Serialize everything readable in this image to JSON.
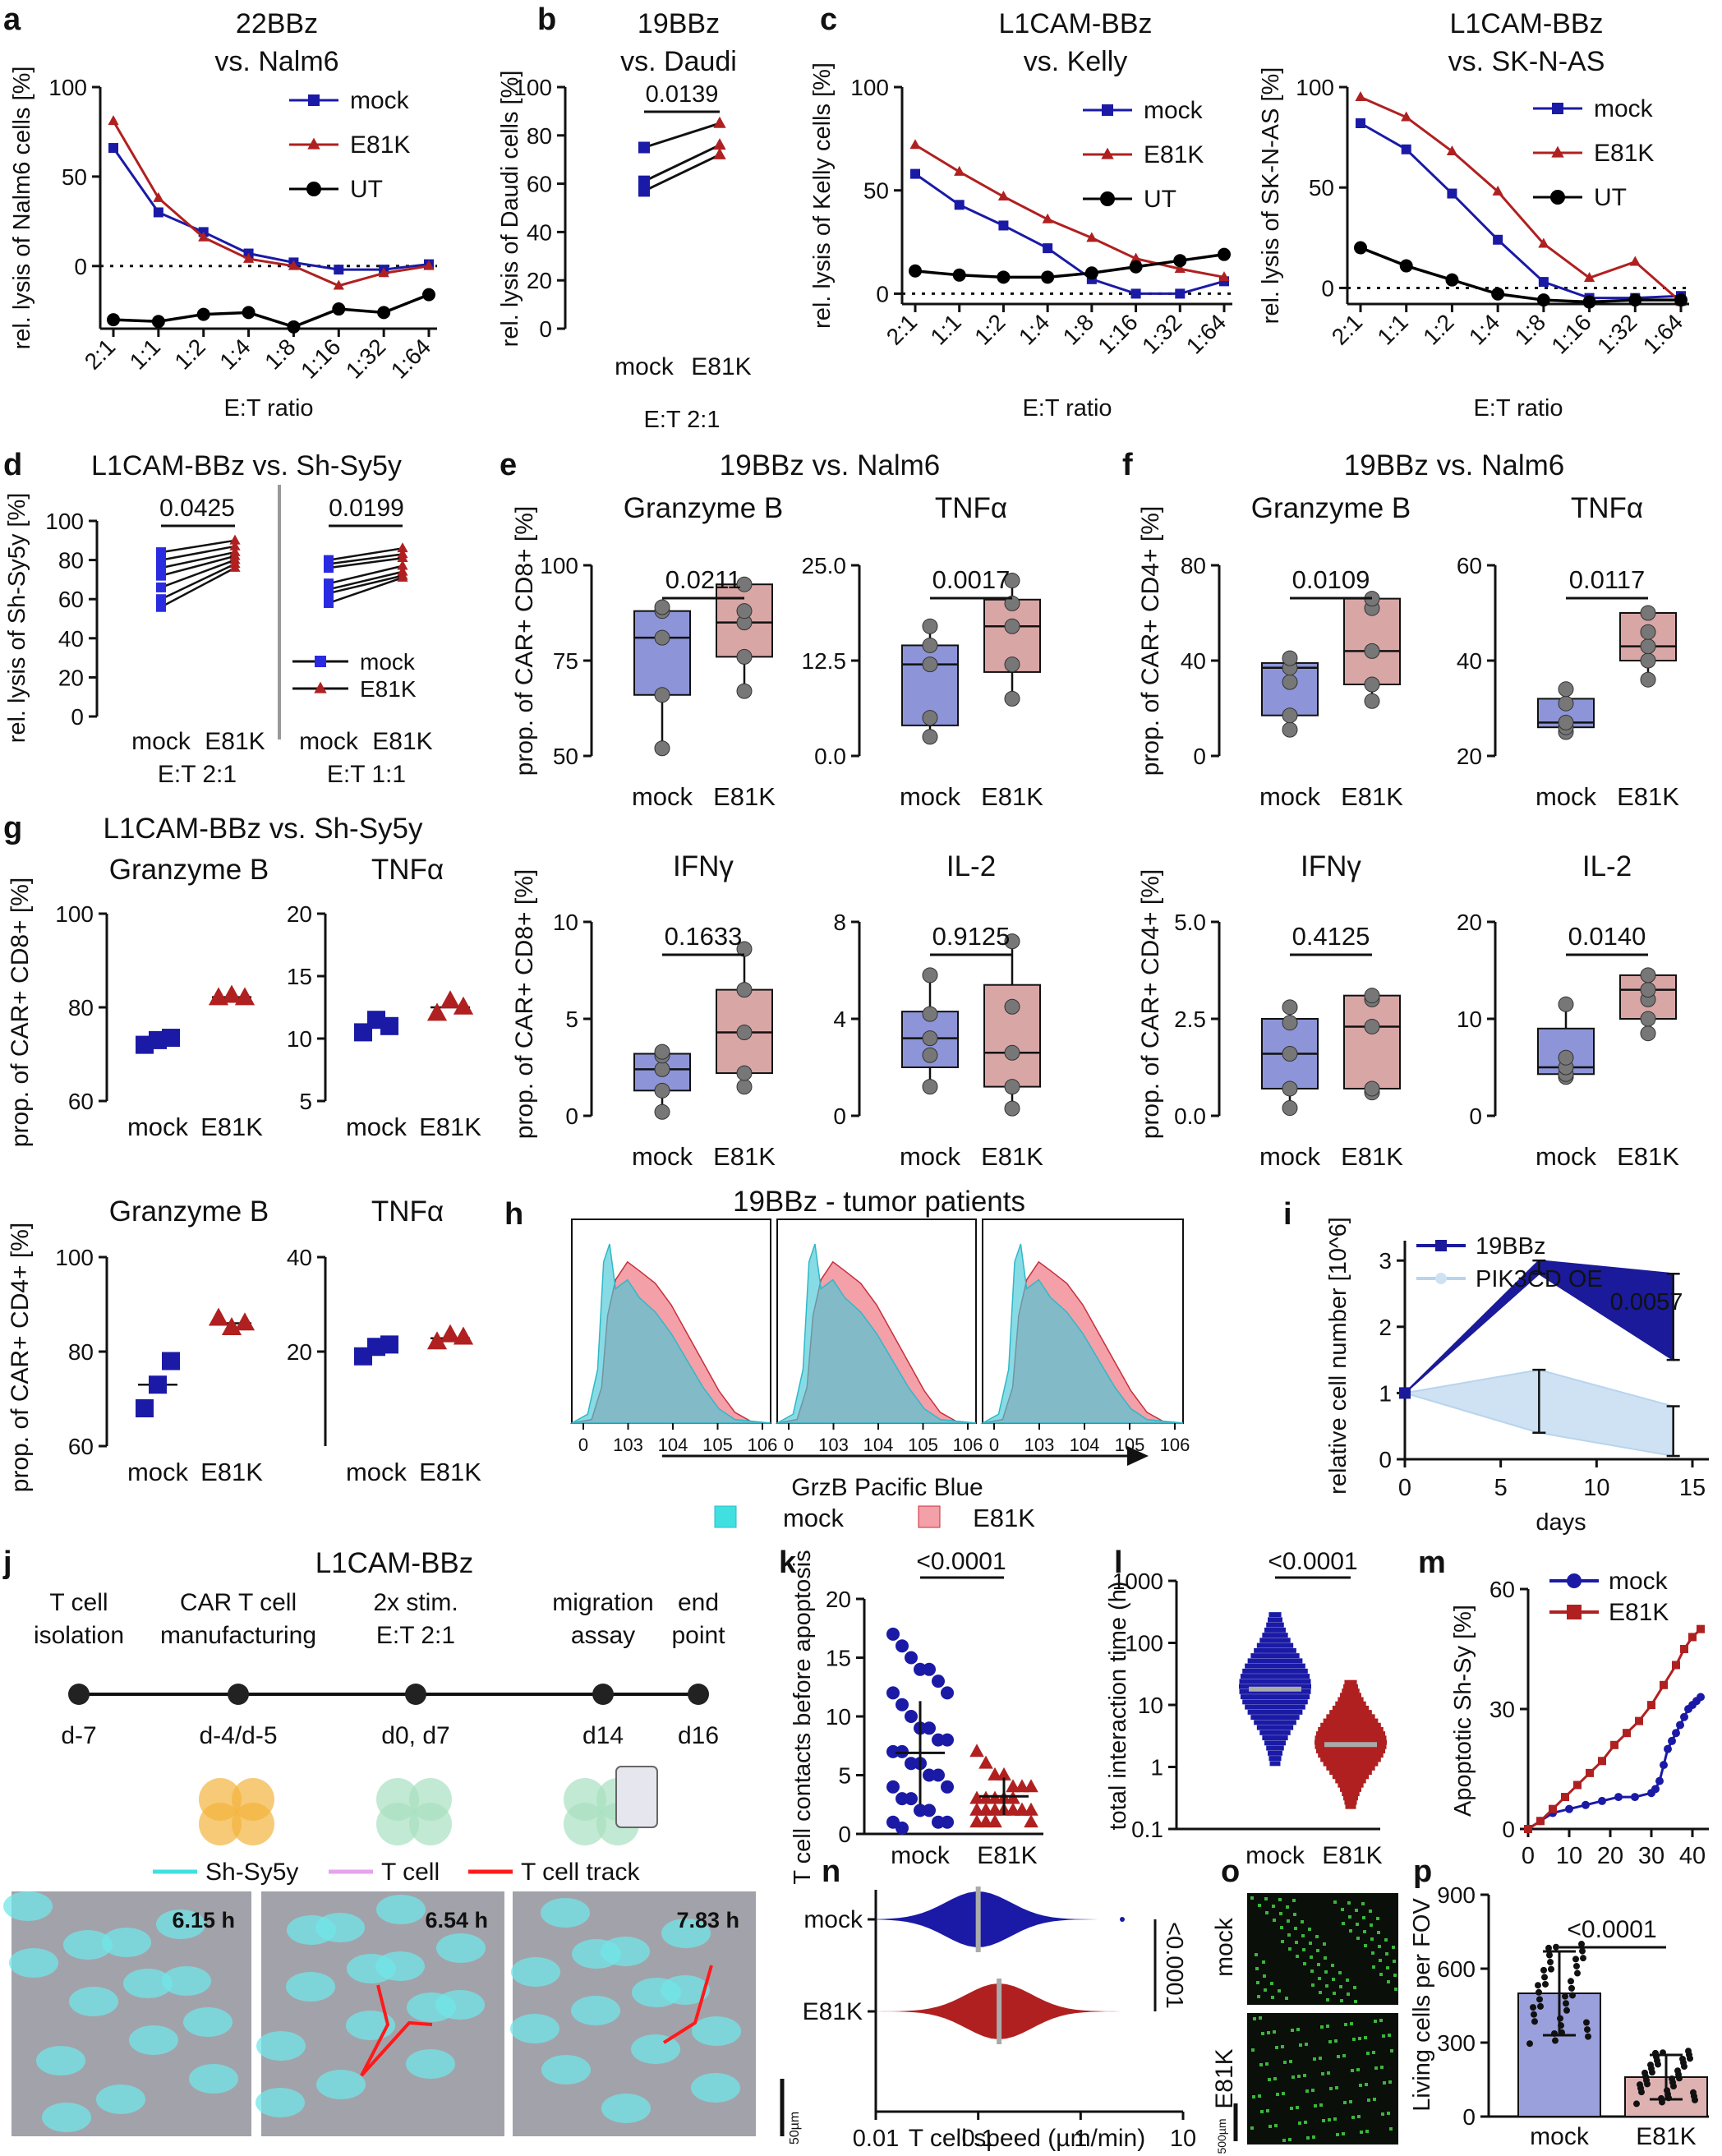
{
  "colors": {
    "mock": "#1a1aa6",
    "e81k": "#b02020",
    "ut": "#000000",
    "mock_fill": "#8d95d8",
    "e81k_fill": "#d9a6a6",
    "pik": "#cfe2f3",
    "cyan": "#40e0e0",
    "pinkfill": "#f3a0a8"
  },
  "panels": {
    "a": {
      "letter": "a",
      "title1": "22BBz",
      "title2": "vs. Nalm6",
      "ylabel": "rel. lysis of Nalm6 cells [%]",
      "xlabel": "E:T ratio"
    },
    "b": {
      "letter": "b",
      "title1": "19BBz",
      "title2": "vs. Daudi",
      "ylabel": "rel. lysis of Daudi cells [%]",
      "xlabel": "E:T 2:1",
      "pvalue": "0.0139"
    },
    "c1": {
      "letter": "c",
      "title1": "L1CAM-BBz",
      "title2": "vs. Kelly",
      "ylabel": "rel. lysis of Kelly cells [%]",
      "xlabel": "E:T ratio"
    },
    "c2": {
      "title1": "L1CAM-BBz",
      "title2": "vs. SK-N-AS",
      "ylabel": "rel. lysis of SK-N-AS [%]",
      "xlabel": "E:T ratio"
    },
    "d": {
      "letter": "d",
      "title": "L1CAM-BBz vs. Sh-Sy5y",
      "ylabel": "rel. lysis of Sh-Sy5y [%]",
      "p1": "0.0425",
      "p2": "0.0199",
      "x1": "E:T 2:1",
      "x2": "E:T 1:1"
    },
    "e": {
      "letter": "e",
      "title": "19BBz vs. Nalm6",
      "ylabel": "prop. of CAR+ CD8+ [%]"
    },
    "f": {
      "letter": "f",
      "title": "19BBz vs. Nalm6",
      "ylabel": "prop. of CAR+ CD4+ [%]"
    },
    "g": {
      "letter": "g",
      "title": "L1CAM-BBz vs. Sh-Sy5y",
      "ylabel_top": "prop. of CAR+ CD8+ [%]",
      "ylabel_bot": "prop. of CAR+ CD4+ [%]"
    },
    "h": {
      "letter": "h",
      "title": "19BBz - tumor patients",
      "xlabel": "GrzB Pacific Blue",
      "legend_mock": "mock",
      "legend_e81k": "E81K"
    },
    "i": {
      "letter": "i",
      "ylabel": "relative cell number [10^6]",
      "xlabel": "days",
      "legend_a": "19BBz",
      "legend_b": "PIK3CD OE",
      "pvalue": "0.0057"
    },
    "j": {
      "letter": "j",
      "title": "L1CAM-BBz",
      "steps": [
        {
          "label1": "T cell",
          "label2": "isolation",
          "day": "d-7"
        },
        {
          "label1": "CAR T cell",
          "label2": "manufacturing",
          "day": "d-4/d-5"
        },
        {
          "label1": "2x stim.",
          "label2": "E:T 2:1",
          "day": "d0, d7"
        },
        {
          "label1": "migration",
          "label2": "assay",
          "day": "d14"
        },
        {
          "label1": "end",
          "label2": "point",
          "day": "d16"
        }
      ],
      "legend": [
        "Sh-Sy5y",
        "T cell",
        "T cell track"
      ],
      "times": [
        "6.15 h",
        "6.54 h",
        "7.83 h"
      ],
      "scale": "50µm"
    },
    "k": {
      "letter": "k",
      "ylabel": "T cell contacts before apoptosis",
      "pvalue": "<0.0001"
    },
    "l": {
      "letter": "l",
      "ylabel": "total interaction time (h)",
      "pvalue": "<0.0001"
    },
    "m": {
      "letter": "m",
      "ylabel": "Apoptotic Sh-Sy [%]"
    },
    "n": {
      "letter": "n",
      "xlabel": "T cell speed  (µm/min)",
      "pvalue": "<0.0001"
    },
    "o": {
      "letter": "o",
      "label_top": "mock",
      "label_bot": "E81K",
      "scale": "500µm"
    },
    "p": {
      "letter": "p",
      "ylabel": "Living cells per FOV",
      "pvalue": "<0.0001"
    }
  },
  "labels": {
    "mock": "mock",
    "e81k": "E81K",
    "ut": "UT",
    "granzyme": "Granzyme B",
    "tnfa": "TNFα",
    "ifng": "IFNγ",
    "il2": "IL-2"
  },
  "chart_data": [
    {
      "id": "a",
      "type": "line",
      "title": "22BBz vs. Nalm6",
      "categories": [
        "2:1",
        "1:1",
        "1:2",
        "1:4",
        "1:8",
        "1:16",
        "1:32",
        "1:64"
      ],
      "ylim": [
        -35,
        100
      ],
      "yticks": [
        0,
        50,
        100
      ],
      "series": [
        {
          "name": "mock",
          "values": [
            66,
            30,
            19,
            7,
            2,
            -2,
            -2,
            1
          ]
        },
        {
          "name": "E81K",
          "values": [
            81,
            38,
            16,
            4,
            0,
            -11,
            -4,
            0
          ]
        },
        {
          "name": "UT",
          "values": [
            -30,
            -31,
            -27,
            -26,
            -34,
            -24,
            -26,
            -16
          ]
        }
      ]
    },
    {
      "id": "b",
      "type": "paired",
      "categories": [
        "mock",
        "E81K"
      ],
      "ylim": [
        0,
        100
      ],
      "yticks": [
        0,
        20,
        40,
        60,
        80,
        100
      ],
      "pairs": [
        [
          75,
          85
        ],
        [
          61,
          76
        ],
        [
          57,
          72
        ]
      ]
    },
    {
      "id": "c1",
      "type": "line",
      "categories": [
        "2:1",
        "1:1",
        "1:2",
        "1:4",
        "1:8",
        "1:16",
        "1:32",
        "1:64"
      ],
      "ylim": [
        -5,
        100
      ],
      "yticks": [
        0,
        50,
        100
      ],
      "series": [
        {
          "name": "mock",
          "values": [
            58,
            43,
            33,
            22,
            7,
            0,
            0,
            6
          ]
        },
        {
          "name": "E81K",
          "values": [
            72,
            59,
            47,
            36,
            27,
            17,
            12,
            8
          ]
        },
        {
          "name": "UT",
          "values": [
            11,
            9,
            8,
            8,
            10,
            13,
            16,
            19
          ]
        }
      ]
    },
    {
      "id": "c2",
      "type": "line",
      "categories": [
        "2:1",
        "1:1",
        "1:2",
        "1:4",
        "1:8",
        "1:16",
        "1:32",
        "1:64"
      ],
      "ylim": [
        -8,
        100
      ],
      "yticks": [
        0,
        50,
        100
      ],
      "series": [
        {
          "name": "mock",
          "values": [
            82,
            69,
            47,
            24,
            3,
            -5,
            -5,
            -4
          ]
        },
        {
          "name": "E81K",
          "values": [
            95,
            85,
            68,
            48,
            22,
            5,
            13,
            -7
          ]
        },
        {
          "name": "UT",
          "values": [
            20,
            11,
            4,
            -3,
            -6,
            -7,
            -6,
            -6
          ]
        }
      ]
    },
    {
      "id": "d",
      "type": "paired",
      "groups": [
        "E:T 2:1",
        "E:T 1:1"
      ],
      "ylim": [
        0,
        100
      ],
      "yticks": [
        0,
        20,
        40,
        60,
        80,
        100
      ],
      "pairs_a": [
        [
          84,
          90
        ],
        [
          80,
          87
        ],
        [
          76,
          84
        ],
        [
          72,
          82
        ],
        [
          66,
          80
        ],
        [
          60,
          78
        ],
        [
          56,
          76
        ]
      ],
      "pairs_b": [
        [
          80,
          86
        ],
        [
          78,
          83
        ],
        [
          76,
          81
        ],
        [
          68,
          77
        ],
        [
          65,
          74
        ],
        [
          63,
          72
        ],
        [
          58,
          71
        ]
      ]
    },
    {
      "id": "e_gzb",
      "type": "box",
      "title": "Granzyme B",
      "ylim": [
        50,
        100
      ],
      "yticks": [
        50,
        75,
        100
      ],
      "pvalue": "0.0211",
      "mock": {
        "min": 52,
        "q1": 66,
        "med": 81,
        "q3": 88,
        "max": 89,
        "points": [
          52,
          66,
          81,
          88,
          89
        ]
      },
      "e81k": {
        "min": 67,
        "q1": 76,
        "med": 85,
        "q3": 95,
        "max": 95,
        "points": [
          67,
          76,
          85,
          88,
          95
        ]
      }
    },
    {
      "id": "e_tnf",
      "type": "box",
      "title": "TNFα",
      "ylim": [
        0,
        25
      ],
      "yticks": [
        0.0,
        12.5,
        25.0
      ],
      "pvalue": "0.0017",
      "mock": {
        "min": 2.5,
        "q1": 4,
        "med": 12,
        "q3": 14.5,
        "max": 17,
        "points": [
          2.5,
          5,
          12,
          14.5,
          17
        ]
      },
      "e81k": {
        "min": 7.5,
        "q1": 11,
        "med": 17,
        "q3": 20.5,
        "max": 23,
        "points": [
          7.5,
          12,
          17,
          20,
          23
        ]
      }
    },
    {
      "id": "e_ifn",
      "type": "box",
      "title": "IFNγ",
      "ylim": [
        0,
        10
      ],
      "yticks": [
        0,
        5,
        10
      ],
      "pvalue": "0.1633",
      "mock": {
        "min": 0.2,
        "q1": 1.3,
        "med": 2.4,
        "q3": 3.2,
        "max": 3.3,
        "points": [
          0.2,
          1.3,
          2.4,
          3.1,
          3.3
        ]
      },
      "e81k": {
        "min": 1.5,
        "q1": 2.2,
        "med": 4.3,
        "q3": 6.5,
        "max": 8.6,
        "points": [
          1.5,
          2.2,
          4.3,
          6.5,
          8.6
        ]
      }
    },
    {
      "id": "e_il2",
      "type": "box",
      "title": "IL-2",
      "ylim": [
        0,
        8
      ],
      "yticks": [
        0,
        4,
        8
      ],
      "pvalue": "0.9125",
      "mock": {
        "min": 1.2,
        "q1": 2.0,
        "med": 3.2,
        "q3": 4.3,
        "max": 5.8,
        "points": [
          1.2,
          2.5,
          3.2,
          4.2,
          5.8
        ]
      },
      "e81k": {
        "min": 0.3,
        "q1": 1.2,
        "med": 2.6,
        "q3": 5.4,
        "max": 7.2,
        "points": [
          0.3,
          1.2,
          2.6,
          4.5,
          7.2
        ]
      }
    },
    {
      "id": "f_gzb",
      "type": "box",
      "title": "Granzyme B",
      "ylim": [
        0,
        80
      ],
      "yticks": [
        0,
        40,
        80
      ],
      "pvalue": "0.0109",
      "mock": {
        "min": 11,
        "q1": 17,
        "med": 37,
        "q3": 39,
        "max": 41,
        "points": [
          11,
          17,
          31,
          37,
          41
        ]
      },
      "e81k": {
        "min": 23,
        "q1": 30,
        "med": 44,
        "q3": 66,
        "max": 66,
        "points": [
          23,
          30,
          44,
          62,
          66
        ]
      }
    },
    {
      "id": "f_tnf",
      "type": "box",
      "title": "TNFα",
      "ylim": [
        20,
        60
      ],
      "yticks": [
        20,
        40,
        60
      ],
      "pvalue": "0.0117",
      "mock": {
        "min": 25,
        "q1": 26,
        "med": 27,
        "q3": 32,
        "max": 34,
        "points": [
          25,
          26,
          27,
          31,
          34
        ]
      },
      "e81k": {
        "min": 36,
        "q1": 40,
        "med": 43,
        "q3": 50,
        "max": 51,
        "points": [
          36,
          40,
          43,
          46,
          50
        ]
      }
    },
    {
      "id": "f_ifn",
      "type": "box",
      "title": "IFNγ",
      "ylim": [
        0,
        5
      ],
      "yticks": [
        0.0,
        2.5,
        5.0
      ],
      "pvalue": "0.4125",
      "mock": {
        "min": 0.2,
        "q1": 0.7,
        "med": 1.6,
        "q3": 2.5,
        "max": 2.8,
        "points": [
          0.2,
          0.7,
          1.6,
          2.4,
          2.8
        ]
      },
      "e81k": {
        "min": 0.6,
        "q1": 0.7,
        "med": 2.3,
        "q3": 3.1,
        "max": 3.1,
        "points": [
          0.6,
          0.7,
          2.3,
          3.0,
          3.1
        ]
      }
    },
    {
      "id": "f_il2",
      "type": "box",
      "title": "IL-2",
      "ylim": [
        0,
        20
      ],
      "yticks": [
        0,
        10,
        20
      ],
      "pvalue": "0.0140",
      "mock": {
        "min": 4,
        "q1": 4.3,
        "med": 5,
        "q3": 9,
        "max": 11.5,
        "points": [
          4,
          4.3,
          5,
          6,
          11.5
        ]
      },
      "e81k": {
        "min": 8.5,
        "q1": 10,
        "med": 13,
        "q3": 14.5,
        "max": 14.5,
        "points": [
          8.5,
          10,
          12,
          13,
          14.5
        ]
      }
    },
    {
      "id": "g_cd8_gzb",
      "type": "dot",
      "title": "Granzyme B",
      "ylim": [
        60,
        100
      ],
      "yticks": [
        60,
        80,
        100
      ],
      "mock": [
        72,
        73,
        73.5
      ],
      "e81k": [
        82,
        82.5,
        82
      ]
    },
    {
      "id": "g_cd8_tnf",
      "type": "dot",
      "title": "TNFα",
      "ylim": [
        5,
        20
      ],
      "yticks": [
        5,
        10,
        15,
        20
      ],
      "mock": [
        10.5,
        11.5,
        11
      ],
      "e81k": [
        12,
        13,
        12.5
      ]
    },
    {
      "id": "g_cd4_gzb",
      "type": "dot",
      "title": "Granzyme B",
      "ylim": [
        60,
        100
      ],
      "yticks": [
        60,
        80,
        100
      ],
      "mock": [
        68,
        73,
        78
      ],
      "e81k": [
        87,
        85,
        86
      ]
    },
    {
      "id": "g_cd4_tnf",
      "type": "dot",
      "title": "TNFα",
      "ylim": [
        0,
        40
      ],
      "yticks": [
        20,
        40
      ],
      "mock": [
        19,
        21,
        21.5
      ],
      "e81k": [
        22,
        23.5,
        23
      ]
    },
    {
      "id": "h",
      "type": "histogram",
      "xticks": [
        "0",
        "10^3",
        "10^4",
        "10^5",
        "10^6"
      ],
      "panels": 3
    },
    {
      "id": "i",
      "type": "line",
      "x": [
        0,
        7,
        14
      ],
      "xlim": [
        0,
        15
      ],
      "ylim": [
        0,
        3.3
      ],
      "yticks": [
        0,
        1,
        2,
        3
      ],
      "xticks": [
        0,
        5,
        10,
        15
      ],
      "series": [
        {
          "name": "19BBz",
          "values": [
            1,
            2.9,
            2.1
          ],
          "lower": [
            1,
            2.8,
            1.5
          ],
          "upper": [
            1,
            3.0,
            2.8
          ]
        },
        {
          "name": "PIK3CD OE",
          "values": [
            1,
            0.8,
            0.45
          ],
          "lower": [
            1,
            0.4,
            0.05
          ],
          "upper": [
            1,
            1.35,
            0.8
          ]
        }
      ]
    },
    {
      "id": "k",
      "type": "scatter-bar",
      "ylim": [
        0,
        20
      ],
      "yticks": [
        0,
        5,
        10,
        15,
        20
      ],
      "mock_mean": 6.9,
      "mock_sd": 4.4,
      "e81k_mean": 3.2,
      "e81k_sd": 1.6
    },
    {
      "id": "l",
      "type": "swarm",
      "ylim": [
        0.1,
        1000
      ],
      "yticks": [
        0.1,
        1,
        10,
        100,
        1000
      ],
      "scale": "log",
      "mock_median": 18,
      "e81k_median": 2.3
    },
    {
      "id": "m",
      "type": "line",
      "xlim": [
        0,
        42
      ],
      "ylim": [
        0,
        60
      ],
      "xticks": [
        0,
        10,
        20,
        30,
        40
      ],
      "yticks": [
        0,
        30,
        60
      ],
      "series": [
        {
          "name": "mock",
          "x": [
            0,
            3,
            6,
            10,
            14,
            18,
            22,
            26,
            30,
            31,
            32,
            33,
            34,
            35,
            36,
            37,
            38,
            39,
            40,
            41,
            42
          ],
          "values": [
            0,
            2,
            4,
            5,
            6,
            7,
            8,
            8,
            9,
            10,
            12,
            16,
            20,
            22,
            24,
            26,
            28,
            30,
            31,
            32,
            33
          ]
        },
        {
          "name": "E81K",
          "x": [
            0,
            3,
            6,
            9,
            12,
            15,
            18,
            21,
            24,
            27,
            30,
            33,
            36,
            38,
            40,
            42
          ],
          "values": [
            0,
            2,
            5,
            8,
            11,
            14,
            17,
            21,
            24,
            27,
            31,
            36,
            41,
            45,
            48,
            50
          ]
        }
      ]
    },
    {
      "id": "n",
      "type": "violin-swarm",
      "xlim": [
        0.01,
        10
      ],
      "scale": "log",
      "xticks": [
        "0.01",
        "0.1",
        "1",
        "10"
      ],
      "mock_median": 0.1,
      "e81k_median": 0.16
    },
    {
      "id": "p",
      "type": "bar",
      "categories": [
        "mock",
        "E81K"
      ],
      "values": [
        500,
        160
      ],
      "sd": [
        170,
        90
      ],
      "ylim": [
        0,
        900
      ],
      "yticks": [
        0,
        300,
        600,
        900
      ]
    }
  ]
}
